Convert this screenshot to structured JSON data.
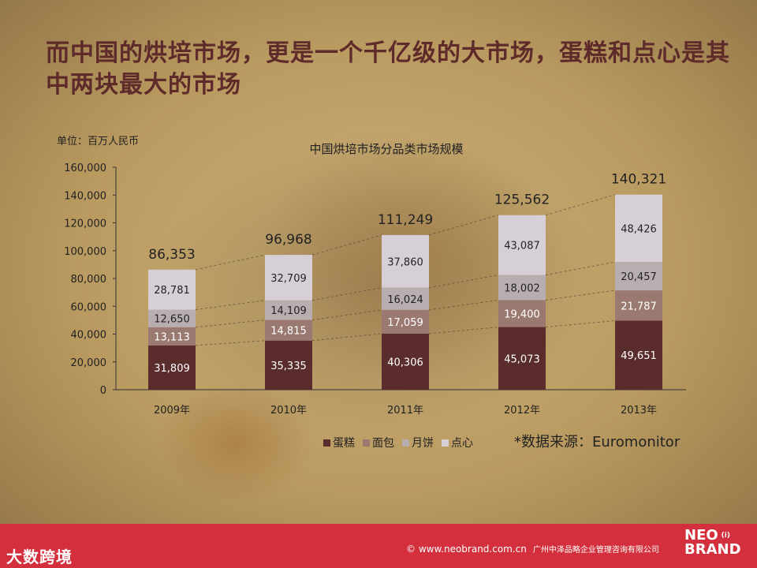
{
  "headline": "而中国的烘培市场，更是一个千亿级的大市场，蛋糕和点心是其中两块最大的市场",
  "unit_label": "单位：百万人民币",
  "source_note": "*数据来源：Euromonitor",
  "footer": {
    "left_logo": "大数跨境",
    "copyright": "© www.neobrand.com.cn",
    "company": "广州中泽品略企业管理咨询有限公司",
    "brand_top": "NEO",
    "brand_bottom": "BRAND",
    "brand_mark": "(i)"
  },
  "chart_data": {
    "type": "bar",
    "stacked": true,
    "title": "中国烘培市场分品类市场规模",
    "categories": [
      "2009年",
      "2010年",
      "2011年",
      "2012年",
      "2013年"
    ],
    "series": [
      {
        "name": "蛋糕",
        "values": [
          31809,
          35335,
          40306,
          45073,
          49651
        ],
        "color": "#5a2c2c"
      },
      {
        "name": "面包",
        "values": [
          13113,
          14815,
          17059,
          19400,
          21787
        ],
        "color": "#9a7a70"
      },
      {
        "name": "月饼",
        "values": [
          12650,
          14109,
          16024,
          18002,
          20457
        ],
        "color": "#b8aeb0"
      },
      {
        "name": "点心",
        "values": [
          28781,
          32709,
          37860,
          43087,
          48426
        ],
        "color": "#d6d0d6"
      }
    ],
    "totals": [
      86353,
      96968,
      111249,
      125562,
      140321
    ],
    "total_labels": [
      "86,353",
      "96,968",
      "111,249",
      "125,562",
      "140,321"
    ],
    "yticks": [
      "0",
      "20,000",
      "40,000",
      "60,000",
      "80,000",
      "100,000",
      "120,000",
      "140,000",
      "160,000"
    ],
    "ylim": [
      0,
      160000
    ],
    "legend_position": "bottom"
  }
}
